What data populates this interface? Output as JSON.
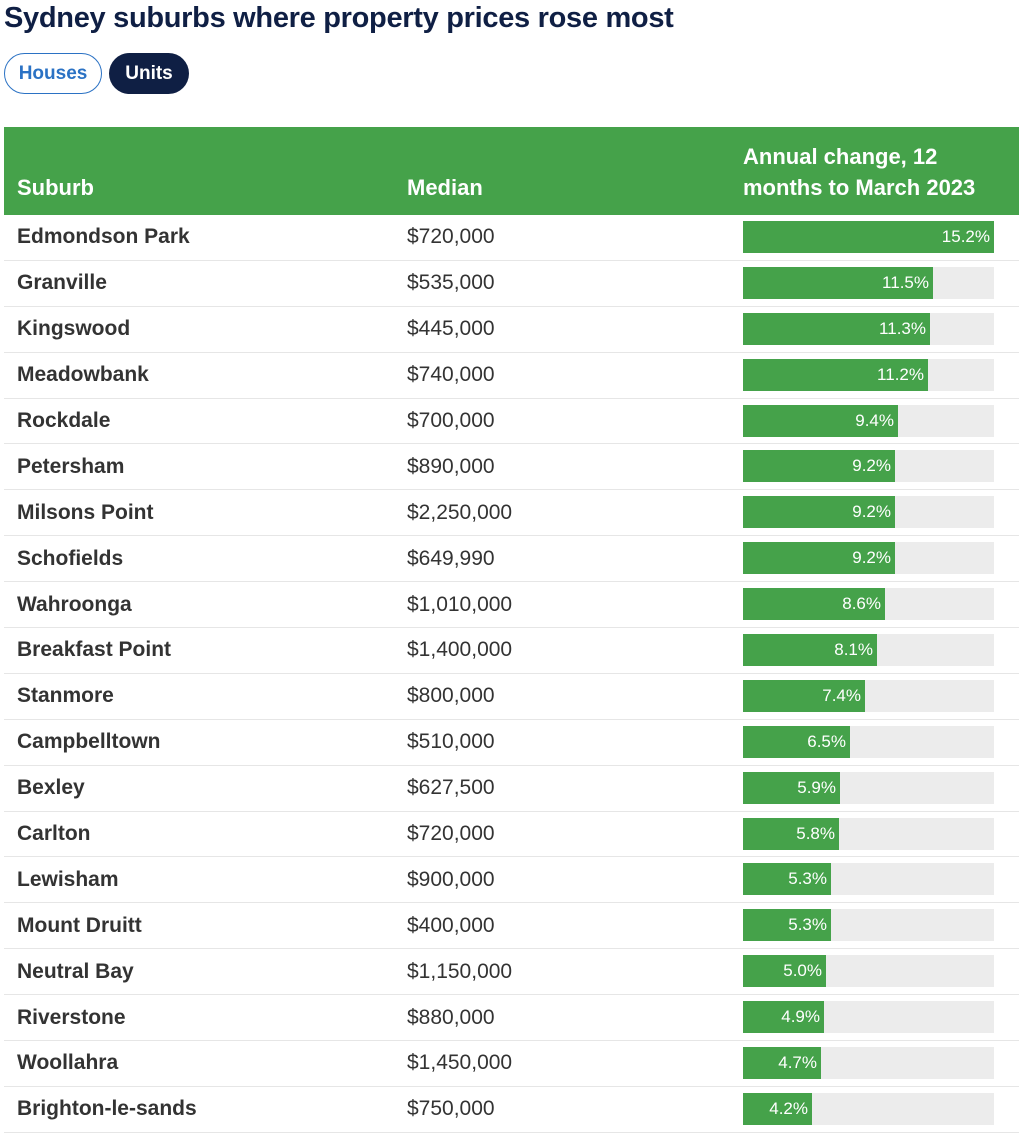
{
  "title": "Sydney suburbs where property prices rose most",
  "toggles": {
    "houses": "Houses",
    "units": "Units",
    "selected": "Units"
  },
  "table": {
    "headers": {
      "suburb": "Suburb",
      "median": "Median",
      "change": "Annual change, 12 months to March 2023"
    },
    "max_change": 15.2,
    "rows": [
      {
        "suburb": "Edmondson Park",
        "median": "$720,000",
        "change": 15.2,
        "change_label": "15.2%"
      },
      {
        "suburb": "Granville",
        "median": "$535,000",
        "change": 11.5,
        "change_label": "11.5%"
      },
      {
        "suburb": "Kingswood",
        "median": "$445,000",
        "change": 11.3,
        "change_label": "11.3%"
      },
      {
        "suburb": "Meadowbank",
        "median": "$740,000",
        "change": 11.2,
        "change_label": "11.2%"
      },
      {
        "suburb": "Rockdale",
        "median": "$700,000",
        "change": 9.4,
        "change_label": "9.4%"
      },
      {
        "suburb": "Petersham",
        "median": "$890,000",
        "change": 9.2,
        "change_label": "9.2%"
      },
      {
        "suburb": "Milsons Point",
        "median": "$2,250,000",
        "change": 9.2,
        "change_label": "9.2%"
      },
      {
        "suburb": "Schofields",
        "median": "$649,990",
        "change": 9.2,
        "change_label": "9.2%"
      },
      {
        "suburb": "Wahroonga",
        "median": "$1,010,000",
        "change": 8.6,
        "change_label": "8.6%"
      },
      {
        "suburb": "Breakfast Point",
        "median": "$1,400,000",
        "change": 8.1,
        "change_label": "8.1%"
      },
      {
        "suburb": "Stanmore",
        "median": "$800,000",
        "change": 7.4,
        "change_label": "7.4%"
      },
      {
        "suburb": "Campbelltown",
        "median": "$510,000",
        "change": 6.5,
        "change_label": "6.5%"
      },
      {
        "suburb": "Bexley",
        "median": "$627,500",
        "change": 5.9,
        "change_label": "5.9%"
      },
      {
        "suburb": "Carlton",
        "median": "$720,000",
        "change": 5.8,
        "change_label": "5.8%"
      },
      {
        "suburb": "Lewisham",
        "median": "$900,000",
        "change": 5.3,
        "change_label": "5.3%"
      },
      {
        "suburb": "Mount Druitt",
        "median": "$400,000",
        "change": 5.3,
        "change_label": "5.3%"
      },
      {
        "suburb": "Neutral Bay",
        "median": "$1,150,000",
        "change": 5.0,
        "change_label": "5.0%"
      },
      {
        "suburb": "Riverstone",
        "median": "$880,000",
        "change": 4.9,
        "change_label": "4.9%"
      },
      {
        "suburb": "Woollahra",
        "median": "$1,450,000",
        "change": 4.7,
        "change_label": "4.7%"
      },
      {
        "suburb": "Brighton-le-sands",
        "median": "$750,000",
        "change": 4.2,
        "change_label": "4.2%"
      }
    ]
  },
  "colors": {
    "bar": "#45a24a",
    "header": "#45a24a",
    "track": "#ececec",
    "title": "#0f1f44",
    "accent": "#2b72c4"
  }
}
